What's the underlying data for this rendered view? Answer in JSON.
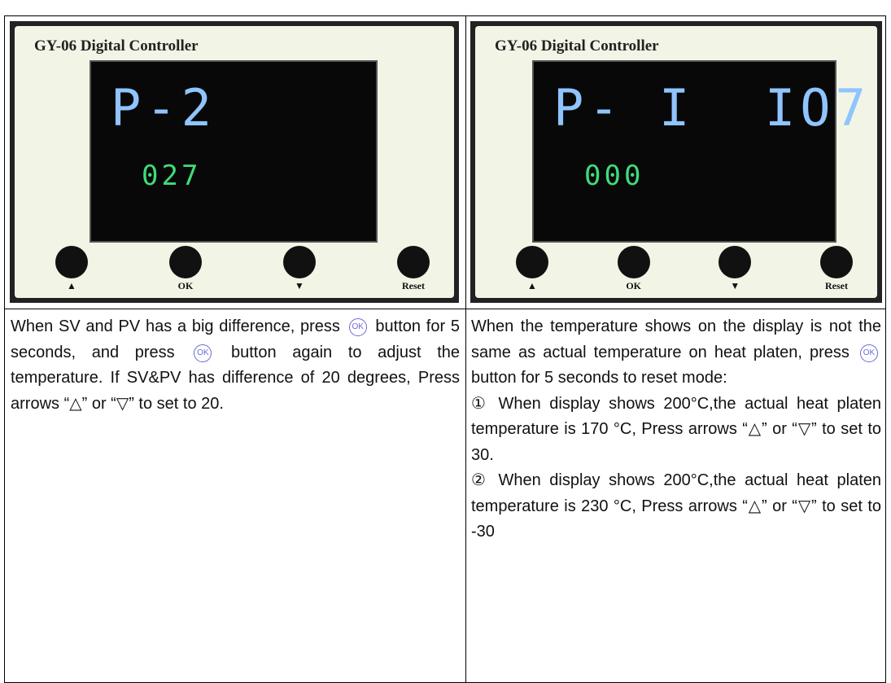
{
  "panels": [
    {
      "brand": "GY-06 Digital Controller",
      "main": "P-2",
      "sub": "027",
      "buttons": [
        "▲",
        "OK",
        "▼",
        "Reset"
      ]
    },
    {
      "brand": "GY-06 Digital Controller",
      "main": "P- I  IO7",
      "sub": "000",
      "buttons": [
        "▲",
        "OK",
        "▼",
        "Reset"
      ]
    }
  ],
  "cells": [
    {
      "paragraphs": [
        [
          "When SV and PV has a big difference, press ",
          {
            "icon": "OK"
          },
          " button for 5 seconds, and press ",
          {
            "icon": "OK"
          },
          " button again to adjust the temperature. If SV&PV has difference of 20 degrees, Press arrows “△” or “▽” to set to 20."
        ]
      ]
    },
    {
      "paragraphs": [
        [
          "When the temperature shows on the display is not the same as actual temperature on heat platen, press ",
          {
            "icon": "OK"
          },
          " button for 5 seconds to reset mode:"
        ],
        [
          "① When display shows 200°C,the actual heat platen temperature is 170 °C, Press arrows “△” or “▽” to set to 30."
        ],
        [
          "② When display shows 200°C,the actual heat platen temperature is 230 °C, Press arrows “△” or “▽” to set to -30"
        ]
      ]
    }
  ]
}
